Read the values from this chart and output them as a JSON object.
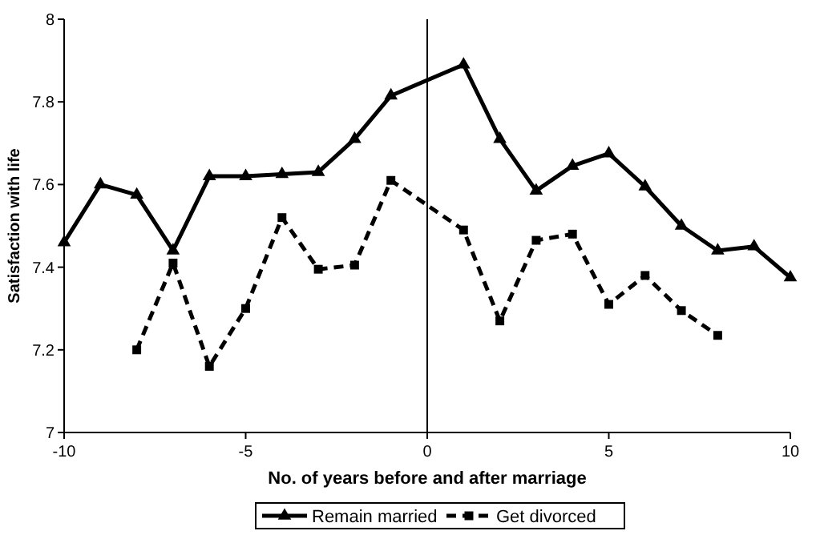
{
  "chart_data": {
    "type": "line",
    "xlabel": "No. of years before and after marriage",
    "ylabel": "Satisfaction with life",
    "xlim": [
      -10,
      10
    ],
    "xticks": [
      -10,
      -5,
      0,
      5,
      10
    ],
    "ylim": [
      7,
      8
    ],
    "yticks": [
      7,
      7.2,
      7.4,
      7.6,
      7.8,
      8
    ],
    "grid": false,
    "legend": "bottom",
    "ref_lines": [
      {
        "axis": "x",
        "value": 0,
        "color": "#000000",
        "line_style": "solid"
      }
    ],
    "series": [
      {
        "name": "Remain married",
        "color": "#000000",
        "marker": "triangle",
        "line_style": "solid",
        "x": [
          -10,
          -9,
          -8,
          -7,
          -6,
          -5,
          -4,
          -3,
          -2,
          -1,
          1,
          2,
          3,
          4,
          5,
          6,
          7,
          8,
          9,
          10
        ],
        "values": [
          7.46,
          7.6,
          7.575,
          7.44,
          7.62,
          7.62,
          7.625,
          7.63,
          7.71,
          7.815,
          7.89,
          7.71,
          7.585,
          7.645,
          7.675,
          7.595,
          7.5,
          7.44,
          7.45,
          7.375
        ]
      },
      {
        "name": "Get divorced",
        "color": "#000000",
        "marker": "square",
        "line_style": "dashed",
        "x": [
          -8,
          -7,
          -6,
          -5,
          -4,
          -3,
          -2,
          -1,
          1,
          2,
          3,
          4,
          5,
          6,
          7,
          8
        ],
        "values": [
          7.2,
          7.41,
          7.16,
          7.3,
          7.52,
          7.395,
          7.405,
          7.61,
          7.49,
          7.27,
          7.465,
          7.48,
          7.31,
          7.38,
          7.295,
          7.235
        ]
      }
    ]
  }
}
